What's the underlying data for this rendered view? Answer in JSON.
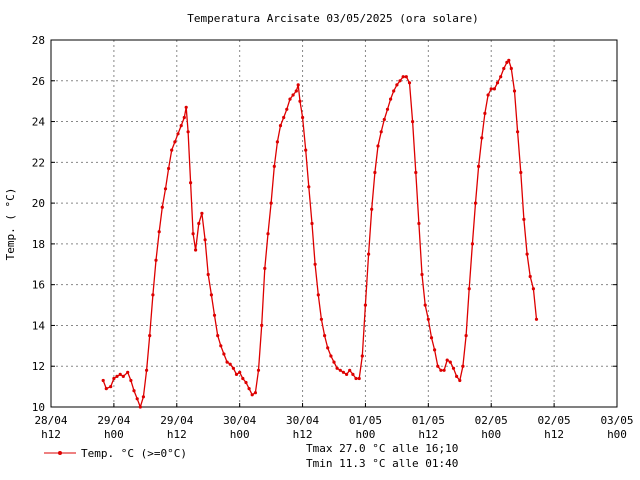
{
  "chart_data": {
    "type": "line",
    "title": "Temperatura Arcisate 03/05/2025 (ora solare)",
    "ylabel": "Temp. ( °C)",
    "xlabel": "",
    "ylim": [
      10,
      28
    ],
    "yticks": [
      10,
      12,
      14,
      16,
      18,
      20,
      22,
      24,
      26,
      28
    ],
    "xlim": [
      0,
      9
    ],
    "xticks": [
      {
        "x": 0,
        "line1": "28/04",
        "line2": "h12"
      },
      {
        "x": 1,
        "line1": "29/04",
        "line2": "h00"
      },
      {
        "x": 2,
        "line1": "29/04",
        "line2": "h12"
      },
      {
        "x": 3,
        "line1": "30/04",
        "line2": "h00"
      },
      {
        "x": 4,
        "line1": "30/04",
        "line2": "h12"
      },
      {
        "x": 5,
        "line1": "01/05",
        "line2": "h00"
      },
      {
        "x": 6,
        "line1": "01/05",
        "line2": "h12"
      },
      {
        "x": 7,
        "line1": "02/05",
        "line2": "h00"
      },
      {
        "x": 8,
        "line1": "02/05",
        "line2": "h12"
      },
      {
        "x": 9,
        "line1": "03/05",
        "line2": "h00"
      }
    ],
    "grid": true,
    "legend_position": "bottom-left",
    "series": [
      {
        "name": "Temp. °C (>=0°C)",
        "color": "#dd0000",
        "points": [
          [
            0.83,
            11.3
          ],
          [
            0.88,
            10.9
          ],
          [
            0.95,
            11.0
          ],
          [
            1.0,
            11.4
          ],
          [
            1.05,
            11.5
          ],
          [
            1.1,
            11.6
          ],
          [
            1.15,
            11.5
          ],
          [
            1.22,
            11.7
          ],
          [
            1.27,
            11.3
          ],
          [
            1.32,
            10.8
          ],
          [
            1.37,
            10.4
          ],
          [
            1.42,
            10.0
          ],
          [
            1.47,
            10.5
          ],
          [
            1.52,
            11.8
          ],
          [
            1.57,
            13.5
          ],
          [
            1.62,
            15.5
          ],
          [
            1.67,
            17.2
          ],
          [
            1.72,
            18.6
          ],
          [
            1.77,
            19.8
          ],
          [
            1.82,
            20.7
          ],
          [
            1.87,
            21.7
          ],
          [
            1.92,
            22.6
          ],
          [
            1.97,
            23.0
          ],
          [
            2.02,
            23.4
          ],
          [
            2.07,
            23.8
          ],
          [
            2.12,
            24.2
          ],
          [
            2.15,
            24.7
          ],
          [
            2.18,
            23.5
          ],
          [
            2.22,
            21.0
          ],
          [
            2.26,
            18.5
          ],
          [
            2.3,
            17.7
          ],
          [
            2.35,
            19.0
          ],
          [
            2.4,
            19.5
          ],
          [
            2.45,
            18.2
          ],
          [
            2.5,
            16.5
          ],
          [
            2.55,
            15.5
          ],
          [
            2.6,
            14.5
          ],
          [
            2.65,
            13.5
          ],
          [
            2.7,
            13.0
          ],
          [
            2.75,
            12.6
          ],
          [
            2.8,
            12.2
          ],
          [
            2.85,
            12.1
          ],
          [
            2.9,
            11.9
          ],
          [
            2.95,
            11.6
          ],
          [
            3.0,
            11.7
          ],
          [
            3.05,
            11.4
          ],
          [
            3.1,
            11.2
          ],
          [
            3.15,
            10.9
          ],
          [
            3.2,
            10.6
          ],
          [
            3.25,
            10.7
          ],
          [
            3.3,
            11.8
          ],
          [
            3.35,
            14.0
          ],
          [
            3.4,
            16.8
          ],
          [
            3.45,
            18.5
          ],
          [
            3.5,
            20.0
          ],
          [
            3.55,
            21.8
          ],
          [
            3.6,
            23.0
          ],
          [
            3.65,
            23.8
          ],
          [
            3.7,
            24.2
          ],
          [
            3.75,
            24.6
          ],
          [
            3.8,
            25.1
          ],
          [
            3.85,
            25.3
          ],
          [
            3.9,
            25.5
          ],
          [
            3.93,
            25.8
          ],
          [
            3.96,
            25.0
          ],
          [
            4.0,
            24.2
          ],
          [
            4.05,
            22.6
          ],
          [
            4.1,
            20.8
          ],
          [
            4.15,
            19.0
          ],
          [
            4.2,
            17.0
          ],
          [
            4.25,
            15.5
          ],
          [
            4.3,
            14.3
          ],
          [
            4.35,
            13.5
          ],
          [
            4.4,
            12.9
          ],
          [
            4.45,
            12.5
          ],
          [
            4.5,
            12.2
          ],
          [
            4.55,
            11.9
          ],
          [
            4.6,
            11.8
          ],
          [
            4.65,
            11.7
          ],
          [
            4.7,
            11.6
          ],
          [
            4.75,
            11.8
          ],
          [
            4.8,
            11.6
          ],
          [
            4.85,
            11.4
          ],
          [
            4.9,
            11.4
          ],
          [
            4.95,
            12.5
          ],
          [
            5.0,
            15.0
          ],
          [
            5.05,
            17.5
          ],
          [
            5.1,
            19.7
          ],
          [
            5.15,
            21.5
          ],
          [
            5.2,
            22.8
          ],
          [
            5.25,
            23.5
          ],
          [
            5.3,
            24.1
          ],
          [
            5.35,
            24.6
          ],
          [
            5.4,
            25.1
          ],
          [
            5.45,
            25.5
          ],
          [
            5.5,
            25.8
          ],
          [
            5.55,
            26.0
          ],
          [
            5.6,
            26.2
          ],
          [
            5.65,
            26.2
          ],
          [
            5.7,
            25.9
          ],
          [
            5.75,
            24.0
          ],
          [
            5.8,
            21.5
          ],
          [
            5.85,
            19.0
          ],
          [
            5.9,
            16.5
          ],
          [
            5.95,
            15.0
          ],
          [
            6.0,
            14.3
          ],
          [
            6.05,
            13.4
          ],
          [
            6.1,
            12.8
          ],
          [
            6.15,
            12.0
          ],
          [
            6.2,
            11.8
          ],
          [
            6.25,
            11.8
          ],
          [
            6.3,
            12.3
          ],
          [
            6.35,
            12.2
          ],
          [
            6.4,
            11.9
          ],
          [
            6.45,
            11.5
          ],
          [
            6.5,
            11.3
          ],
          [
            6.55,
            12.0
          ],
          [
            6.6,
            13.5
          ],
          [
            6.65,
            15.8
          ],
          [
            6.7,
            18.0
          ],
          [
            6.75,
            20.0
          ],
          [
            6.8,
            21.8
          ],
          [
            6.85,
            23.2
          ],
          [
            6.9,
            24.4
          ],
          [
            6.95,
            25.3
          ],
          [
            7.0,
            25.6
          ],
          [
            7.05,
            25.6
          ],
          [
            7.1,
            25.9
          ],
          [
            7.15,
            26.2
          ],
          [
            7.2,
            26.6
          ],
          [
            7.25,
            26.9
          ],
          [
            7.28,
            27.0
          ],
          [
            7.32,
            26.6
          ],
          [
            7.37,
            25.5
          ],
          [
            7.42,
            23.5
          ],
          [
            7.47,
            21.5
          ],
          [
            7.52,
            19.2
          ],
          [
            7.57,
            17.5
          ],
          [
            7.62,
            16.4
          ],
          [
            7.67,
            15.8
          ],
          [
            7.72,
            14.3
          ]
        ]
      }
    ],
    "annotations": [
      "Tmax 27.0 °C alle 16;10",
      "Tmin 11.3 °C alle 01:40"
    ]
  }
}
